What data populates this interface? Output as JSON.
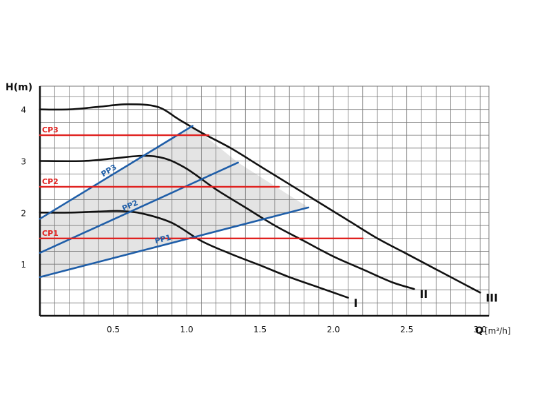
{
  "chart_data": {
    "type": "line",
    "title": "",
    "xlabel": "Q",
    "xunit": "[m³/h]",
    "ylabel": "H(m)",
    "xlim": [
      0.0,
      3.06
    ],
    "ylim": [
      0.0,
      4.45
    ],
    "grid": true,
    "x_ticks": [
      0.5,
      1.0,
      1.5,
      2.0,
      2.5,
      3.0
    ],
    "x_tick_labels": [
      "0.5",
      "1.0",
      "1.5",
      "2.0",
      "2.5",
      "3.0"
    ],
    "y_ticks": [
      1,
      2,
      3,
      4
    ],
    "y_tick_labels": [
      "1",
      "2",
      "3",
      "4"
    ],
    "colors": {
      "speed_curve": "#111111",
      "proportional_pressure": "#1f5ea8",
      "constant_pressure": "#e0211f",
      "operating_area": "#e4e4e4",
      "grid": "#777777"
    },
    "series": [
      {
        "name": "I",
        "kind": "speed",
        "x": [
          0.0,
          0.2,
          0.4,
          0.55,
          0.7,
          0.9,
          1.1,
          1.3,
          1.5,
          1.7,
          1.9,
          2.1
        ],
        "y": [
          2.0,
          2.0,
          2.02,
          2.03,
          1.98,
          1.8,
          1.45,
          1.2,
          0.98,
          0.75,
          0.55,
          0.35
        ]
      },
      {
        "name": "II",
        "kind": "speed",
        "x": [
          0.0,
          0.3,
          0.5,
          0.7,
          0.85,
          1.0,
          1.2,
          1.4,
          1.6,
          1.8,
          2.0,
          2.2,
          2.4,
          2.55
        ],
        "y": [
          3.0,
          3.0,
          3.05,
          3.1,
          3.05,
          2.85,
          2.45,
          2.1,
          1.75,
          1.45,
          1.15,
          0.9,
          0.65,
          0.52
        ]
      },
      {
        "name": "III",
        "kind": "speed",
        "x": [
          0.0,
          0.2,
          0.4,
          0.6,
          0.8,
          0.95,
          1.1,
          1.3,
          1.5,
          1.7,
          1.9,
          2.1,
          2.3,
          2.5,
          2.7,
          2.9,
          3.0
        ],
        "y": [
          4.0,
          4.0,
          4.05,
          4.1,
          4.05,
          3.8,
          3.55,
          3.25,
          2.9,
          2.55,
          2.2,
          1.85,
          1.5,
          1.2,
          0.9,
          0.6,
          0.45
        ]
      },
      {
        "name": "PP1",
        "kind": "proportional",
        "x": [
          0.0,
          1.83
        ],
        "y": [
          0.75,
          2.1
        ]
      },
      {
        "name": "PP2",
        "kind": "proportional",
        "x": [
          0.0,
          1.35
        ],
        "y": [
          1.22,
          2.97
        ]
      },
      {
        "name": "PP3",
        "kind": "proportional",
        "x": [
          0.0,
          1.04
        ],
        "y": [
          1.88,
          3.68
        ]
      },
      {
        "name": "CP1",
        "kind": "constant",
        "x": [
          0.0,
          2.2
        ],
        "y": [
          1.5,
          1.5
        ]
      },
      {
        "name": "CP2",
        "kind": "constant",
        "x": [
          0.0,
          1.63
        ],
        "y": [
          2.5,
          2.5
        ]
      },
      {
        "name": "CP3",
        "kind": "constant",
        "x": [
          0.0,
          1.15
        ],
        "y": [
          3.5,
          3.5
        ]
      }
    ],
    "operating_area": {
      "x": [
        0.0,
        1.83,
        1.35,
        1.04,
        0.0
      ],
      "y": [
        0.75,
        2.1,
        2.97,
        3.68,
        1.88
      ]
    }
  }
}
